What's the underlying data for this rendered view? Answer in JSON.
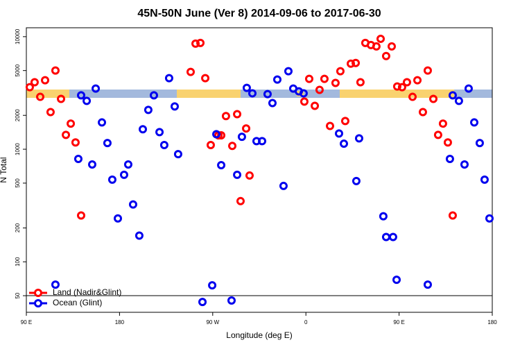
{
  "chart_data": {
    "type": "scatter",
    "title": "45N-50N June (Ver 8)   2014-09-06 to 2017-06-30",
    "x_label": "Longitude (deg E)",
    "y_label": "N Total",
    "log_y": true,
    "legend": "lower left",
    "xlim": [
      90,
      540
    ],
    "xticks": [
      {
        "value": 90,
        "label": "90 E"
      },
      {
        "value": 180,
        "label": "180"
      },
      {
        "value": 270,
        "label": "90 W"
      },
      {
        "value": 360,
        "label": "0"
      },
      {
        "value": 450,
        "label": "90 E"
      },
      {
        "value": 540,
        "label": "180"
      }
    ],
    "ylim": [
      35.6,
      12000
    ],
    "yticks": [
      50,
      100,
      200,
      500,
      1000,
      2000,
      5000,
      10000
    ],
    "series": [
      {
        "name": "Land (Nadir&Glint)",
        "color": "#ff0000",
        "x": [
          93.3,
          98.0,
          103.4,
          108.1,
          113.4,
          118.1,
          123.5,
          128.2,
          132.9,
          137.5,
          142.9,
          248.7,
          253.4,
          258.1,
          262.8,
          268.1,
          275.5,
          278.2,
          282.8,
          288.9,
          293.6,
          296.9,
          302.3,
          305.6,
          358.5,
          363.2,
          368.6,
          373.2,
          377.9,
          383.3,
          388.6,
          393.3,
          398.0,
          403.4,
          408.1,
          412.7,
          417.4,
          422.8,
          428.1,
          432.2,
          437.5,
          442.9,
          448.2,
          452.9,
          457.6,
          463.0,
          467.7,
          473.0,
          477.7,
          483.1,
          487.7,
          492.4,
          497.1,
          501.8
        ],
        "values": [
          3560,
          3940,
          2920,
          4100,
          2140,
          5000,
          2800,
          1340,
          1690,
          1150,
          258,
          4860,
          8670,
          8800,
          4280,
          1090,
          1330,
          1330,
          1970,
          1070,
          2050,
          346,
          1530,
          584,
          2650,
          4220,
          2430,
          3370,
          4220,
          1610,
          3880,
          4930,
          1780,
          5760,
          5840,
          3940,
          8800,
          8430,
          8200,
          9570,
          6730,
          8200,
          3610,
          3560,
          3940,
          2920,
          4100,
          2140,
          5000,
          2800,
          1340,
          1690,
          1150,
          258
        ]
      },
      {
        "name": "Ocean (Glint)",
        "color": "#0000ee",
        "x": [
          118.1,
          140.2,
          142.9,
          148.3,
          153.6,
          157.0,
          163.0,
          168.3,
          173.0,
          178.4,
          184.4,
          188.4,
          193.1,
          199.1,
          202.5,
          207.8,
          213.2,
          218.6,
          223.2,
          227.9,
          233.3,
          236.6,
          260.1,
          269.5,
          273.5,
          278.2,
          288.2,
          293.6,
          298.2,
          302.9,
          308.3,
          312.3,
          317.7,
          323.0,
          327.7,
          332.4,
          338.4,
          343.1,
          347.8,
          353.2,
          357.8,
          392.0,
          396.7,
          408.7,
          411.4,
          434.8,
          437.5,
          444.2,
          447.6,
          477.7,
          499.1,
          501.8,
          507.8,
          513.2,
          517.2,
          522.6,
          527.9,
          532.6,
          537.3
        ],
        "values": [
          62.7,
          820,
          3010,
          2690,
          732,
          3460,
          1730,
          1135,
          537,
          243,
          593,
          732,
          323,
          171,
          1505,
          2235,
          3010,
          1420,
          1090,
          4280,
          2400,
          905,
          44,
          61.8,
          1360,
          722,
          45.3,
          593,
          1290,
          3510,
          3140,
          1180,
          1180,
          3090,
          2570,
          4160,
          472,
          4930,
          3460,
          3270,
          3140,
          1380,
          1120,
          522,
          1250,
          254,
          166,
          166,
          69.2,
          62.7,
          820,
          3010,
          2690,
          732,
          3460,
          1730,
          1135,
          537,
          243
        ]
      }
    ]
  }
}
